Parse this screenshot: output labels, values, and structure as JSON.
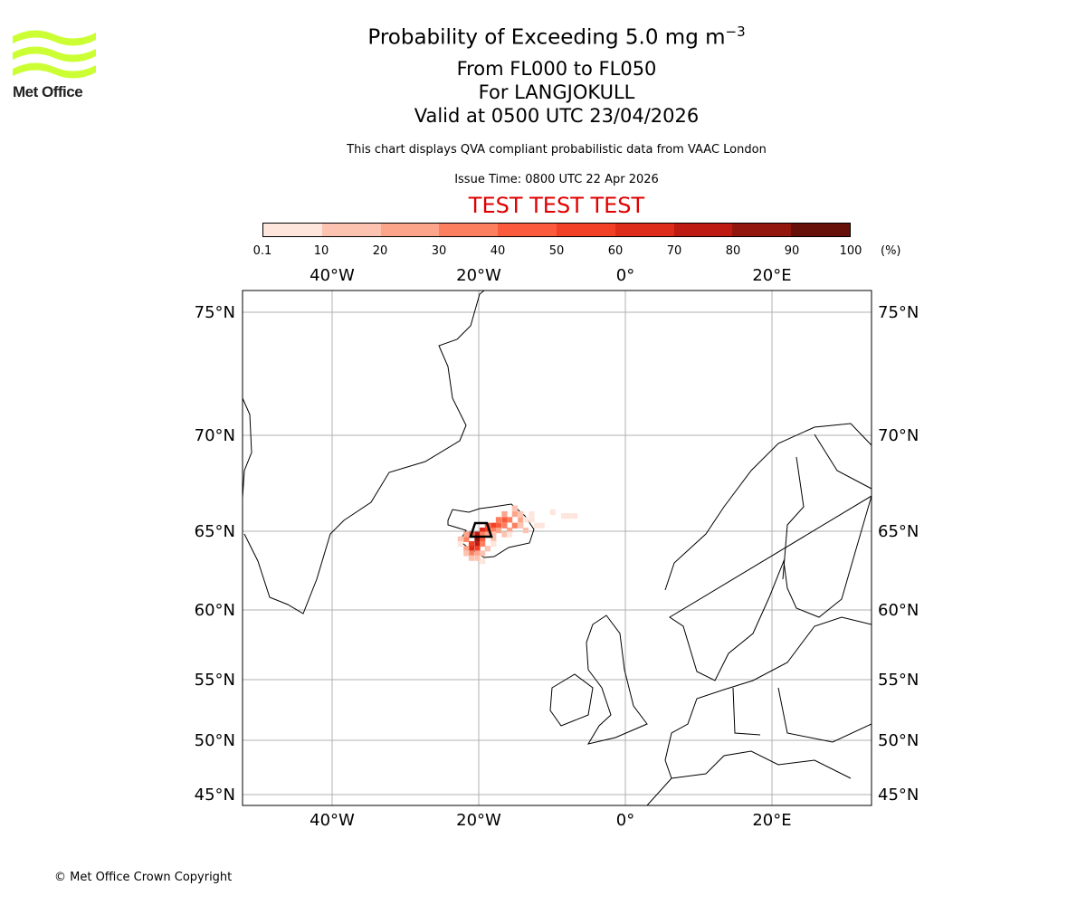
{
  "logo": {
    "text": "Met Office",
    "color": "#ccff33"
  },
  "title": {
    "main": "Probability of Exceeding 5.0 mg m",
    "main_sup": "−3",
    "line2": "From FL000 to FL050",
    "line3": "For LANGJOKULL",
    "line4": "Valid at 0500 UTC 23/04/2026",
    "note": "This chart displays QVA compliant probabilistic data from VAAC London",
    "issue": "Issue Time: 0800 UTC 22 Apr 2026",
    "test": "TEST TEST TEST"
  },
  "colorbar": {
    "ticks": [
      "0.1",
      "10",
      "20",
      "30",
      "40",
      "50",
      "60",
      "70",
      "80",
      "90",
      "100"
    ],
    "unit": "(%)",
    "colors": [
      "#fee6dd",
      "#fcc3b1",
      "#fca58b",
      "#fc8060",
      "#fb5a3c",
      "#f24027",
      "#de2c1a",
      "#bd1b11",
      "#92160e",
      "#67100a"
    ]
  },
  "axes": {
    "lon_ticks": [
      {
        "value": -40,
        "label": "40°W"
      },
      {
        "value": -20,
        "label": "20°W"
      },
      {
        "value": 0,
        "label": "0°"
      },
      {
        "value": 20,
        "label": "20°E"
      }
    ],
    "lat_ticks": [
      {
        "value": 75,
        "label": "75°N"
      },
      {
        "value": 70,
        "label": "70°N"
      },
      {
        "value": 65,
        "label": "65°N"
      },
      {
        "value": 60,
        "label": "60°N"
      },
      {
        "value": 55,
        "label": "55°N"
      },
      {
        "value": 50,
        "label": "50°N"
      },
      {
        "value": 45,
        "label": "45°N"
      }
    ]
  },
  "chart_data": {
    "type": "heatmap",
    "title": "Probability of Exceeding 5.0 mg m−3",
    "units": "%",
    "volcano": {
      "name": "LANGJOKULL",
      "lon": -20.0,
      "lat": 64.7
    },
    "lon_range": [
      -52,
      33
    ],
    "lat_range": [
      44,
      76
    ],
    "cells": [
      [
        -20.2,
        64.8,
        70
      ],
      [
        -20.2,
        64.5,
        80
      ],
      [
        -20.2,
        64.2,
        70
      ],
      [
        -21.0,
        64.2,
        50
      ],
      [
        -21.0,
        63.9,
        60
      ],
      [
        -20.2,
        63.9,
        50
      ],
      [
        -19.5,
        65.05,
        60
      ],
      [
        -18.8,
        65.05,
        50
      ],
      [
        -18.0,
        65.3,
        50
      ],
      [
        -17.3,
        65.3,
        40
      ],
      [
        -16.5,
        65.6,
        40
      ],
      [
        -15.8,
        65.6,
        30
      ],
      [
        -15.1,
        65.3,
        30
      ],
      [
        -16.5,
        65.3,
        30
      ],
      [
        -18.0,
        65.05,
        30
      ],
      [
        -17.3,
        65.05,
        20
      ],
      [
        -15.8,
        65.05,
        20
      ],
      [
        -15.1,
        65.9,
        20
      ],
      [
        -14.3,
        65.6,
        20
      ],
      [
        -19.5,
        64.5,
        40
      ],
      [
        -19.5,
        64.2,
        30
      ],
      [
        -21.7,
        64.5,
        30
      ],
      [
        -21.7,
        63.9,
        20
      ],
      [
        -21.0,
        63.6,
        30
      ],
      [
        -20.2,
        63.6,
        20
      ],
      [
        -19.5,
        63.6,
        10
      ],
      [
        -21.0,
        63.3,
        10
      ],
      [
        -20.2,
        63.3,
        10
      ],
      [
        -19.5,
        64.8,
        30
      ],
      [
        -18.8,
        64.8,
        20
      ],
      [
        -18.0,
        64.8,
        10
      ],
      [
        -16.5,
        64.8,
        10
      ],
      [
        -15.8,
        64.8,
        5
      ],
      [
        -14.3,
        65.3,
        10
      ],
      [
        -13.6,
        65.6,
        5
      ],
      [
        -12.8,
        65.6,
        5
      ],
      [
        -12.1,
        65.3,
        5
      ],
      [
        -11.4,
        65.3,
        5
      ],
      [
        -19.5,
        63.1,
        5
      ],
      [
        -21.7,
        63.6,
        10
      ],
      [
        -22.5,
        64.5,
        10
      ],
      [
        -15.1,
        66.2,
        10
      ],
      [
        -14.3,
        65.9,
        10
      ],
      [
        -12.8,
        65.9,
        5
      ],
      [
        -9.9,
        66.0,
        5
      ],
      [
        -8.4,
        65.8,
        5
      ],
      [
        -7.7,
        65.8,
        5
      ],
      [
        -6.9,
        65.8,
        5
      ],
      [
        -18.0,
        64.5,
        10
      ],
      [
        -18.8,
        63.9,
        10
      ],
      [
        -22.5,
        64.2,
        5
      ],
      [
        -16.5,
        65.9,
        20
      ],
      [
        -17.3,
        65.6,
        30
      ],
      [
        -18.8,
        65.3,
        40
      ],
      [
        -21.0,
        64.8,
        40
      ],
      [
        -21.7,
        64.8,
        20
      ],
      [
        -13.6,
        65.05,
        10
      ],
      [
        -18.0,
        64.2,
        5
      ]
    ]
  },
  "footer": "© Met Office Crown Copyright"
}
